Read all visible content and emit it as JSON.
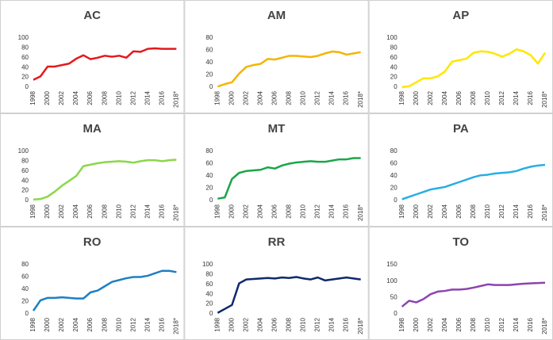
{
  "chart_data": [
    {
      "type": "line",
      "title": "AC",
      "color": "#e3191c",
      "categories": [
        "1998",
        null,
        "2000",
        null,
        "2002",
        null,
        "2004",
        null,
        "2006",
        null,
        "2008",
        null,
        "2010",
        null,
        "2012",
        null,
        "2014",
        null,
        "2016",
        null,
        "2018*"
      ],
      "values": [
        15,
        22,
        42,
        42,
        45,
        48,
        58,
        65,
        57,
        60,
        64,
        62,
        64,
        60,
        73,
        72,
        78,
        79,
        78,
        78,
        78
      ],
      "ylim": [
        0,
        100
      ],
      "yticks": [
        0,
        20,
        40,
        60,
        80,
        100
      ],
      "grid": false
    },
    {
      "type": "line",
      "title": "AM",
      "color": "#f5b400",
      "categories": [
        "1998",
        null,
        "2000",
        null,
        "2002",
        null,
        "2004",
        null,
        "2006",
        null,
        "2008",
        null,
        "2010",
        null,
        "2012",
        null,
        "2014",
        null,
        "2016",
        null,
        "2018*"
      ],
      "values": [
        1,
        5,
        8,
        22,
        33,
        36,
        38,
        46,
        45,
        48,
        51,
        51,
        50,
        49,
        51,
        55,
        58,
        57,
        53,
        55,
        57
      ],
      "ylim": [
        0,
        80
      ],
      "yticks": [
        0,
        20,
        40,
        60,
        80
      ],
      "grid": false
    },
    {
      "type": "line",
      "title": "AP",
      "color": "#ffe600",
      "categories": [
        "1998",
        null,
        "2000",
        null,
        "2002",
        null,
        "2004",
        null,
        "2006",
        null,
        "2008",
        null,
        "2010",
        null,
        "2012",
        null,
        "2014",
        null,
        "2016",
        null,
        "2018*"
      ],
      "values": [
        0,
        2,
        10,
        18,
        18,
        22,
        32,
        52,
        55,
        58,
        70,
        73,
        72,
        68,
        62,
        68,
        77,
        73,
        65,
        48,
        70
      ],
      "ylim": [
        0,
        100
      ],
      "yticks": [
        0,
        20,
        40,
        60,
        80,
        100
      ],
      "grid": false
    },
    {
      "type": "line",
      "title": "MA",
      "color": "#8bd84a",
      "categories": [
        "1998",
        null,
        "2000",
        null,
        "2002",
        null,
        "2004",
        null,
        "2006",
        null,
        "2008",
        null,
        "2010",
        null,
        "2012",
        null,
        "2014",
        null,
        "2016",
        null,
        "2018*"
      ],
      "values": [
        2,
        3,
        8,
        18,
        30,
        40,
        50,
        70,
        73,
        76,
        78,
        79,
        80,
        79,
        77,
        80,
        82,
        82,
        80,
        82,
        83
      ],
      "ylim": [
        0,
        100
      ],
      "yticks": [
        0,
        20,
        40,
        60,
        80,
        100
      ],
      "grid": false
    },
    {
      "type": "line",
      "title": "MT",
      "color": "#1aa64a",
      "categories": [
        "1998",
        null,
        "2000",
        null,
        "2002",
        null,
        "2004",
        null,
        "2006",
        null,
        "2008",
        null,
        "2010",
        null,
        "2012",
        null,
        "2014",
        null,
        "2016",
        null,
        "2018*"
      ],
      "values": [
        3,
        5,
        35,
        45,
        48,
        49,
        50,
        54,
        52,
        57,
        60,
        62,
        63,
        64,
        63,
        63,
        65,
        67,
        67,
        69,
        69
      ],
      "ylim": [
        0,
        80
      ],
      "yticks": [
        0,
        20,
        40,
        60,
        80
      ],
      "grid": false
    },
    {
      "type": "line",
      "title": "PA",
      "color": "#29ade6",
      "categories": [
        "1998",
        null,
        "2000",
        null,
        "2002",
        null,
        "2004",
        null,
        "2006",
        null,
        "2008",
        null,
        "2010",
        null,
        "2012",
        null,
        "2014",
        null,
        "2016",
        null,
        "2018*"
      ],
      "values": [
        2,
        6,
        10,
        14,
        18,
        20,
        22,
        26,
        30,
        34,
        38,
        41,
        42,
        44,
        45,
        46,
        48,
        52,
        55,
        57,
        58
      ],
      "ylim": [
        0,
        80
      ],
      "yticks": [
        0,
        20,
        40,
        60,
        80
      ],
      "grid": false
    },
    {
      "type": "line",
      "title": "RO",
      "color": "#1e7fc4",
      "categories": [
        "1998",
        null,
        "2000",
        null,
        "2002",
        null,
        "2004",
        null,
        "2006",
        null,
        "2008",
        null,
        "2010",
        null,
        "2012",
        null,
        "2014",
        null,
        "2016",
        null,
        "2018*"
      ],
      "values": [
        5,
        22,
        26,
        26,
        27,
        26,
        25,
        25,
        35,
        38,
        45,
        52,
        55,
        58,
        60,
        60,
        62,
        66,
        70,
        70,
        68
      ],
      "ylim": [
        0,
        80
      ],
      "yticks": [
        0,
        20,
        40,
        60,
        80
      ],
      "grid": false
    },
    {
      "type": "line",
      "title": "RR",
      "color": "#0d2a6b",
      "categories": [
        "1998",
        null,
        "2000",
        null,
        "2002",
        null,
        "2004",
        null,
        "2006",
        null,
        "2008",
        null,
        "2010",
        null,
        "2012",
        null,
        "2014",
        null,
        "2016",
        null,
        "2018*"
      ],
      "values": [
        2,
        10,
        18,
        62,
        70,
        71,
        72,
        73,
        72,
        74,
        73,
        75,
        72,
        70,
        74,
        68,
        70,
        72,
        74,
        72,
        70
      ],
      "ylim": [
        0,
        100
      ],
      "yticks": [
        0,
        20,
        40,
        60,
        80,
        100
      ],
      "grid": false
    },
    {
      "type": "line",
      "title": "TO",
      "color": "#8b44b0",
      "categories": [
        "1998",
        null,
        "2000",
        null,
        "2002",
        null,
        "2004",
        null,
        "2006",
        null,
        "2008",
        null,
        "2010",
        null,
        "2012",
        null,
        "2014",
        null,
        "2016",
        null,
        "2018*"
      ],
      "values": [
        22,
        40,
        35,
        45,
        60,
        68,
        70,
        74,
        74,
        76,
        80,
        85,
        90,
        88,
        88,
        88,
        90,
        92,
        93,
        94,
        95
      ],
      "ylim": [
        0,
        150
      ],
      "yticks": [
        0,
        50,
        100,
        150
      ],
      "grid": false
    }
  ]
}
